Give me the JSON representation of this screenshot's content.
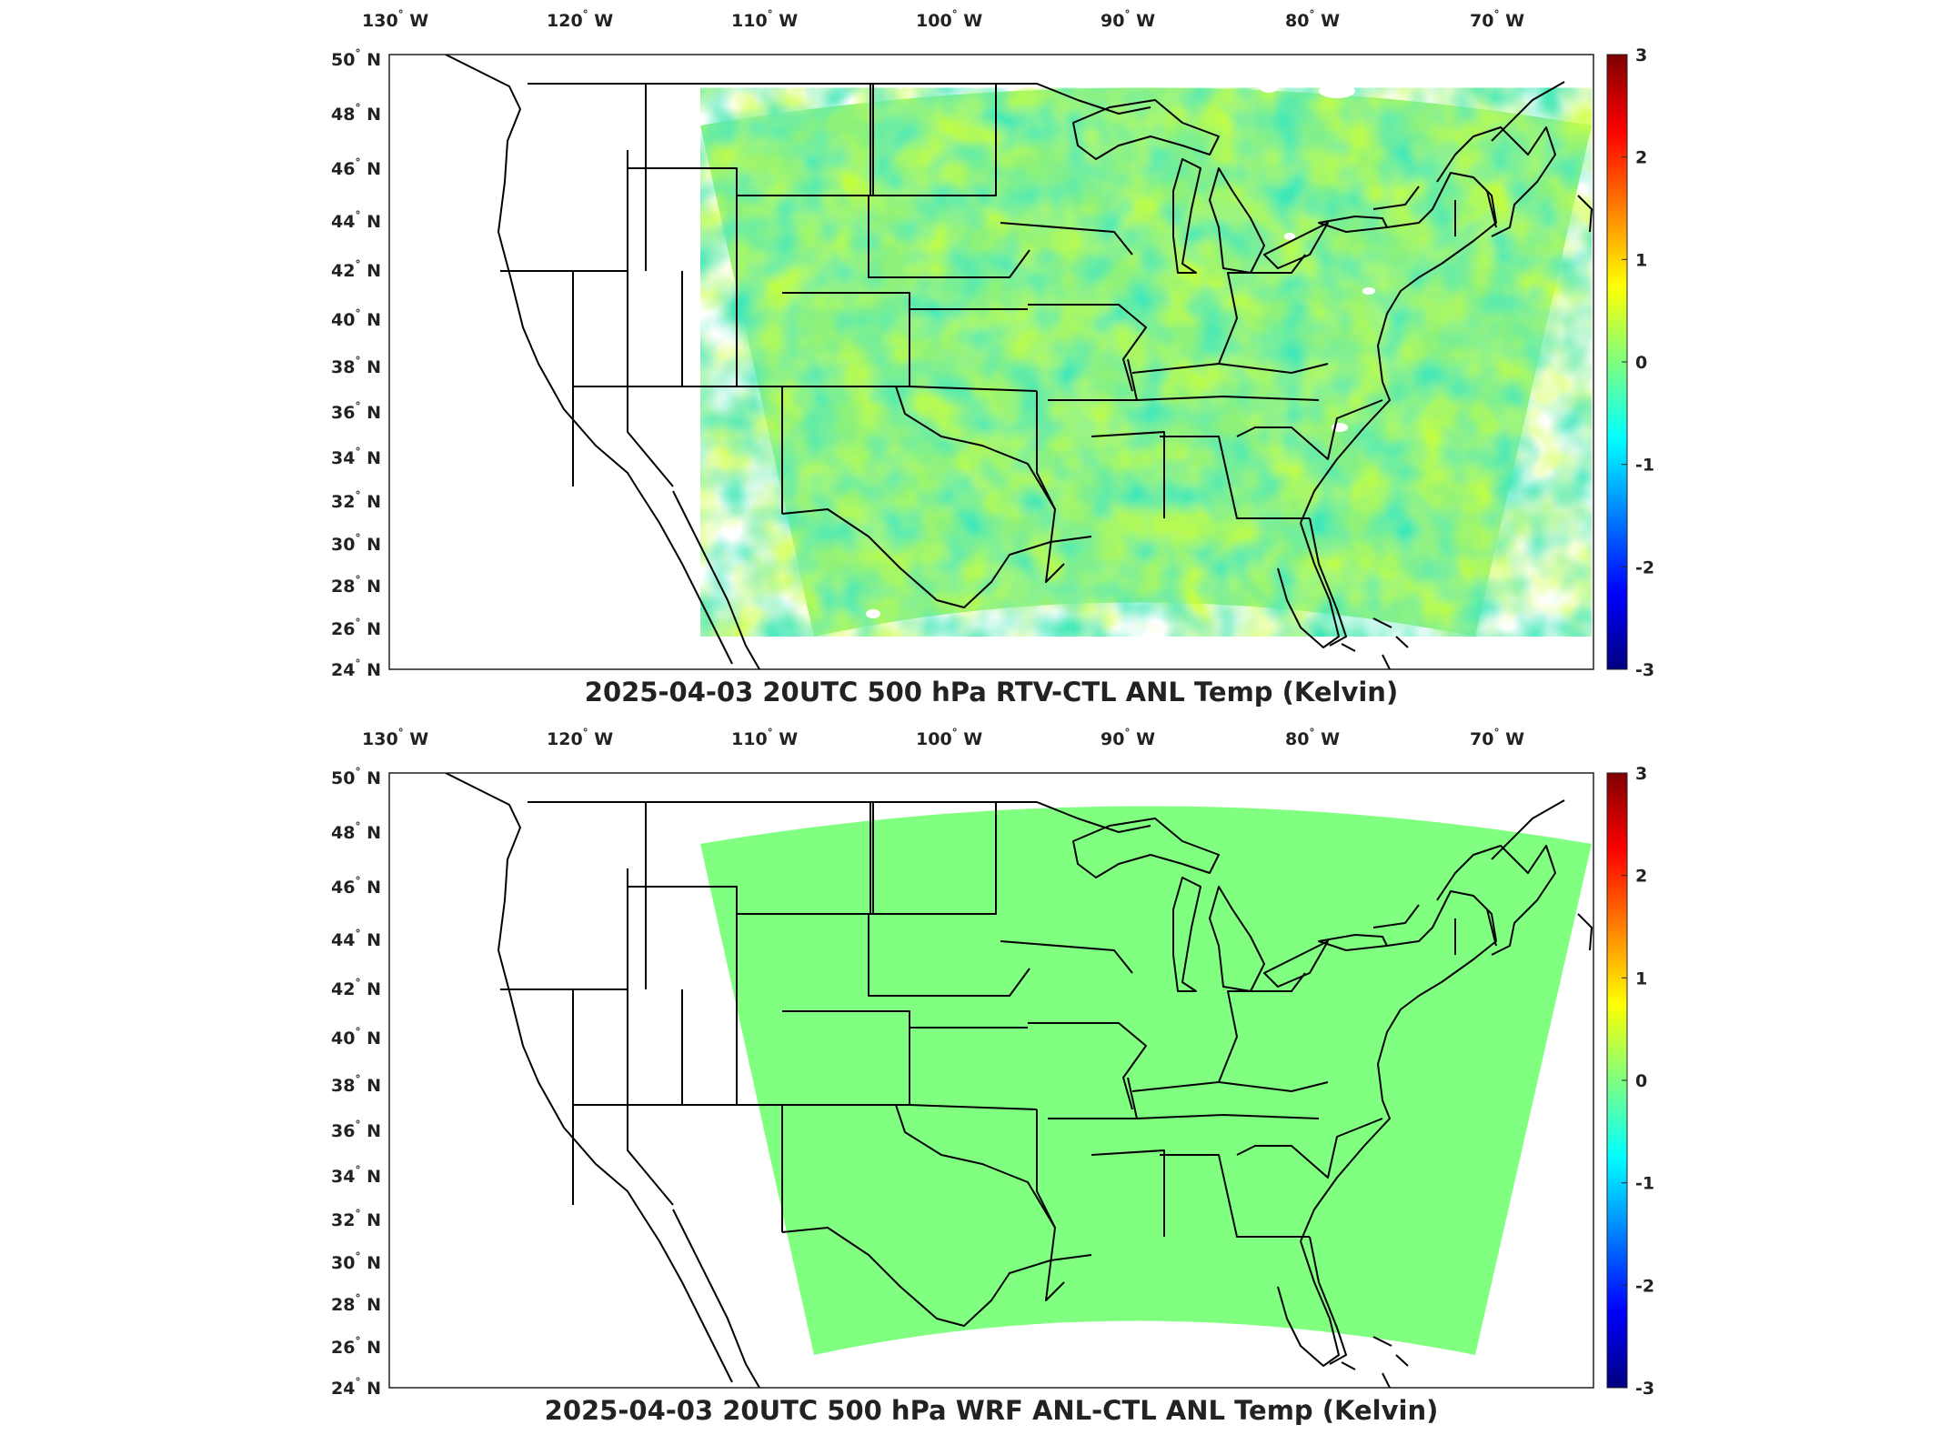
{
  "panels": [
    {
      "title": "2025-04-03 20UTC 500 hPa RTV-CTL ANL Temp (Kelvin)",
      "field": "noisy",
      "lon_ticks": [
        "130",
        "120",
        "110",
        "100",
        "90",
        "80",
        "70"
      ],
      "lon_suffix": "W",
      "lat_ticks": [
        "50",
        "48",
        "46",
        "44",
        "42",
        "40",
        "38",
        "36",
        "34",
        "32",
        "30",
        "28",
        "26",
        "24"
      ],
      "lat_suffix": "N",
      "colorbar_ticks": [
        "3",
        "2",
        "1",
        "0",
        "-1",
        "-2",
        "-3"
      ]
    },
    {
      "title": "2025-04-03 20UTC 500 hPa WRF ANL-CTL ANL Temp (Kelvin)",
      "field": "zero",
      "lon_ticks": [
        "130",
        "120",
        "110",
        "100",
        "90",
        "80",
        "70"
      ],
      "lon_suffix": "W",
      "lat_ticks": [
        "50",
        "48",
        "46",
        "44",
        "42",
        "40",
        "38",
        "36",
        "34",
        "32",
        "30",
        "28",
        "26",
        "24"
      ],
      "lat_suffix": "N",
      "colorbar_ticks": [
        "3",
        "2",
        "1",
        "0",
        "-1",
        "-2",
        "-3"
      ]
    }
  ],
  "colors": {
    "zero_field": "#80ff80",
    "coastline": "#000000",
    "colormap": [
      "#00007f",
      "#0000ff",
      "#007fff",
      "#00ffff",
      "#7fff7f",
      "#ffff00",
      "#ff7f00",
      "#ff0000",
      "#7f0000"
    ]
  },
  "colorbar_range": [
    -3,
    3
  ]
}
